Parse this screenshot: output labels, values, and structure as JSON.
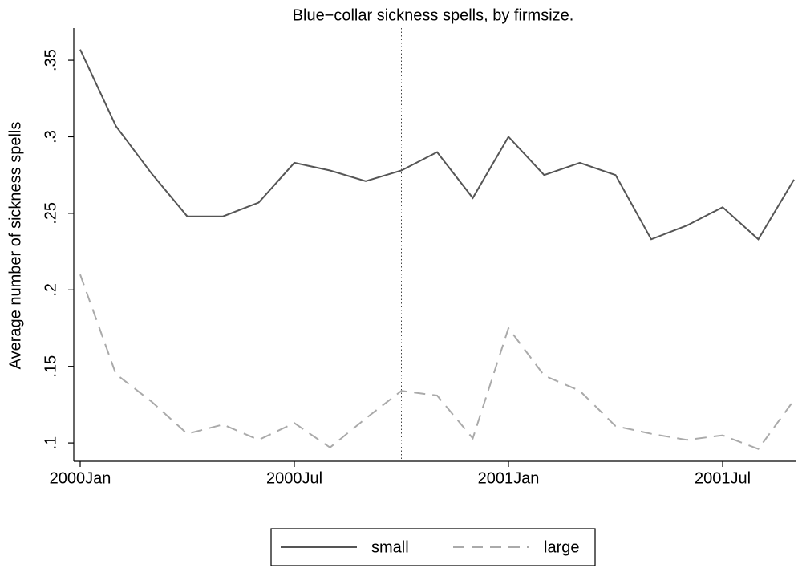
{
  "chart_data": {
    "type": "line",
    "title": "Blue−collar sickness spells, by firmsize.",
    "y_label": "Average number of sickness spells",
    "categories": [
      "2000Jan",
      null,
      null,
      null,
      null,
      null,
      "2000Jul",
      null,
      null,
      null,
      null,
      null,
      "2001Jan",
      null,
      null,
      null,
      null,
      null,
      "2001Jul",
      null,
      null
    ],
    "series": [
      {
        "name": "small",
        "color": "#555555",
        "dash": "solid",
        "values": [
          0.357,
          0.307,
          0.276,
          0.248,
          0.248,
          0.257,
          0.283,
          0.278,
          0.271,
          0.278,
          0.29,
          0.26,
          0.3,
          0.275,
          0.283,
          0.275,
          0.233,
          0.242,
          0.254,
          0.233,
          0.272
        ]
      },
      {
        "name": "large",
        "color": "#aaaaaa",
        "dash": "dashed",
        "values": [
          0.21,
          0.145,
          0.127,
          0.106,
          0.112,
          0.102,
          0.113,
          0.097,
          0.116,
          0.134,
          0.131,
          0.103,
          0.175,
          0.144,
          0.134,
          0.111,
          0.106,
          0.102,
          0.105,
          0.096,
          0.128
        ]
      }
    ],
    "xline": 9,
    "ylim": [
      0.088,
      0.371
    ],
    "yticks": [
      {
        "value": 0.1,
        "label": ".1"
      },
      {
        "value": 0.15,
        "label": ".15"
      },
      {
        "value": 0.2,
        "label": ".2"
      },
      {
        "value": 0.25,
        "label": ".25"
      },
      {
        "value": 0.3,
        "label": ".3"
      },
      {
        "value": 0.35,
        "label": ".35"
      }
    ],
    "grid": false,
    "legend": "bottom"
  }
}
